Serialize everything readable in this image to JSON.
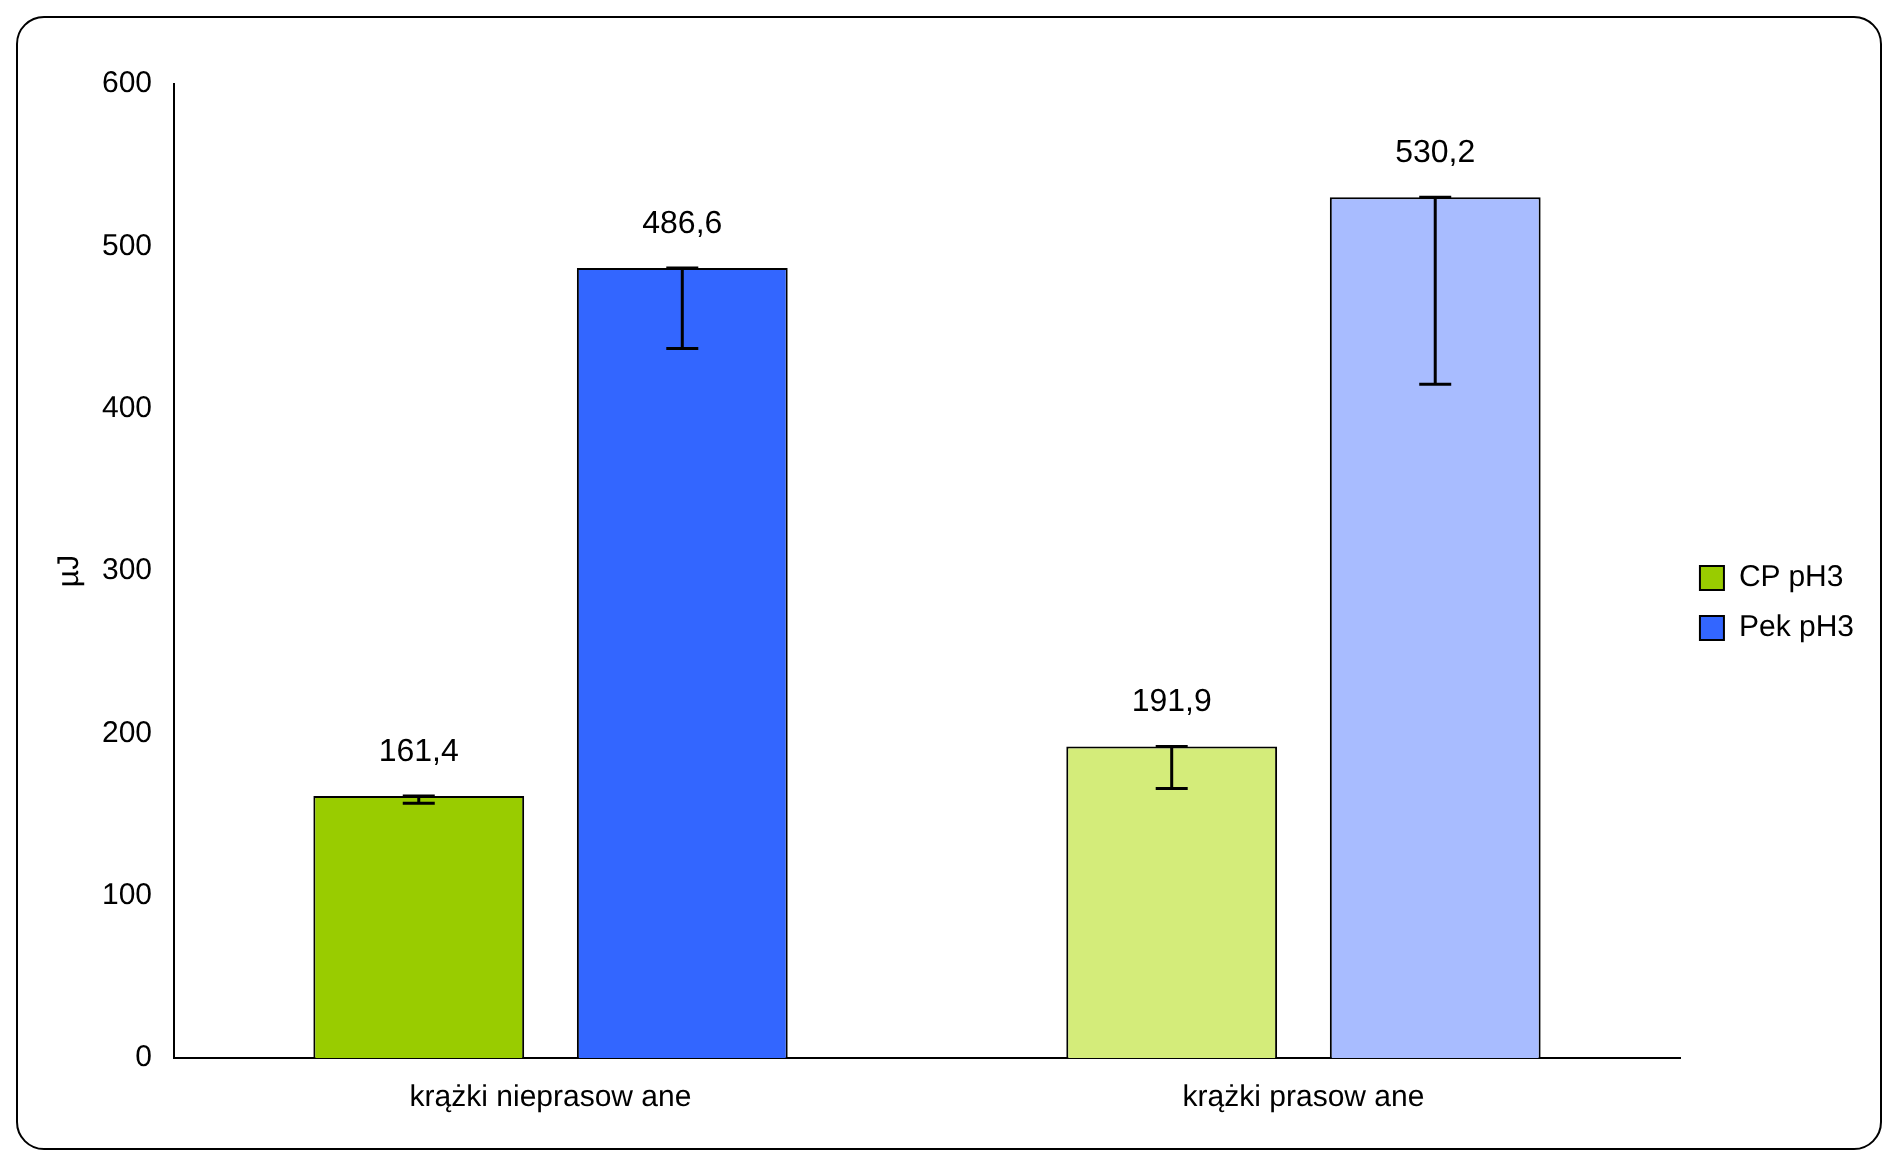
{
  "chart_data": {
    "type": "bar",
    "ylabel": "µJ",
    "categories": [
      "krążki nieprasow ane",
      "krążki prasow ane"
    ],
    "series": [
      {
        "name": "CP pH3",
        "color": "#99cc00",
        "colors": [
          "#99cc00",
          "#d4ec7a"
        ],
        "values": [
          161.4,
          191.9
        ],
        "errors": [
          [
            157,
            161.4
          ],
          [
            166,
            191.9
          ]
        ],
        "value_labels": [
          "161,4",
          "191,9"
        ]
      },
      {
        "name": "Pek pH3",
        "color": "#3366ff",
        "colors": [
          "#3366ff",
          "#a8bcff"
        ],
        "values": [
          486.6,
          530.2
        ],
        "errors": [
          [
            437,
            486.6
          ],
          [
            415,
            530.2
          ]
        ],
        "value_labels": [
          "486,6",
          "530,2"
        ]
      }
    ],
    "ylim": [
      0,
      600
    ],
    "yticks": [
      0,
      100,
      200,
      300,
      400,
      500,
      600
    ],
    "grid": false,
    "legend": "right"
  }
}
